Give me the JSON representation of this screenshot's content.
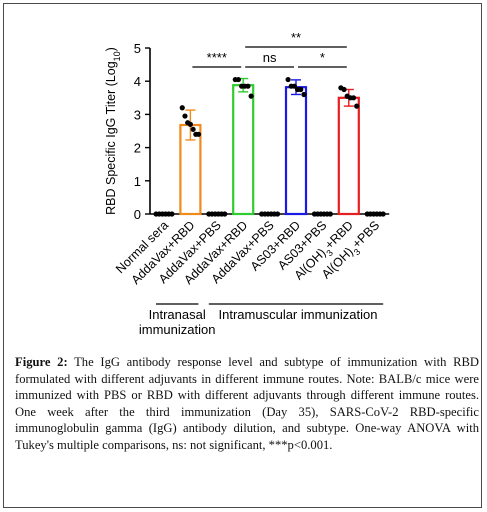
{
  "chart_data": {
    "type": "bar",
    "ylabel": "RBD Specific IgG Titer (Log10)",
    "ylim": [
      0,
      5
    ],
    "yticks": [
      0,
      1,
      2,
      3,
      4,
      5
    ],
    "categories": [
      "Normal sera",
      "AddaVax+RBD",
      "AddaVax+PBS",
      "AddaVax+RBD",
      "AddaVax+PBS",
      "AS03+RBD",
      "AS03+PBS",
      "Al(OH)3+RBD",
      "Al(OH)3+PBS"
    ],
    "category_parts": [
      [
        {
          "t": "Normal sera"
        }
      ],
      [
        {
          "t": "AddaVax+RBD"
        }
      ],
      [
        {
          "t": "AddaVax+PBS"
        }
      ],
      [
        {
          "t": "AddaVax+RBD"
        }
      ],
      [
        {
          "t": "AddaVax+PBS"
        }
      ],
      [
        {
          "t": "AS03+RBD"
        }
      ],
      [
        {
          "t": "AS03+PBS"
        }
      ],
      [
        {
          "t": "Al(OH)"
        },
        {
          "t": "3",
          "sub": true
        },
        {
          "t": "+RBD"
        }
      ],
      [
        {
          "t": "Al(OH)"
        },
        {
          "t": "3",
          "sub": true
        },
        {
          "t": "+PBS"
        }
      ]
    ],
    "values": [
      0,
      2.68,
      0,
      3.88,
      0,
      3.82,
      0,
      3.5,
      0
    ],
    "errors": [
      0,
      0.45,
      0,
      0.2,
      0,
      0.22,
      0,
      0.25,
      0
    ],
    "colors": [
      "#000000",
      "#f08a1c",
      "#000000",
      "#2ecc2e",
      "#000000",
      "#1a1ae6",
      "#000000",
      "#e81e1e",
      "#000000"
    ],
    "points": [
      [
        0,
        0,
        0,
        0,
        0,
        0
      ],
      [
        3.2,
        2.95,
        2.75,
        2.7,
        2.55,
        2.4,
        2.4
      ],
      [
        0,
        0,
        0,
        0,
        0,
        0
      ],
      [
        4.05,
        4.05,
        3.85,
        3.85,
        3.85,
        3.55
      ],
      [
        0,
        0,
        0,
        0,
        0,
        0
      ],
      [
        4.05,
        3.85,
        3.85,
        3.75,
        3.75,
        3.6
      ],
      [
        0,
        0,
        0,
        0,
        0,
        0
      ],
      [
        3.8,
        3.75,
        3.55,
        3.5,
        3.5,
        3.25
      ],
      [
        0,
        0,
        0,
        0,
        0,
        0
      ]
    ],
    "significance": [
      {
        "from": 1,
        "to": 3,
        "label": "****"
      },
      {
        "from": 3,
        "to": 5,
        "label": "ns"
      },
      {
        "from": 5,
        "to": 7,
        "label": "*"
      },
      {
        "from": 3,
        "to": 7,
        "label": "**"
      }
    ],
    "groups": [
      {
        "from": 0,
        "to": 1,
        "label_lines": [
          "Intranasal",
          "immunization"
        ]
      },
      {
        "from": 2,
        "to": 8,
        "label_lines": [
          "Intramuscular immunization"
        ]
      }
    ]
  },
  "caption": {
    "figure_label": "Figure 2:",
    "text": " The IgG antibody response level and subtype of immunization with RBD formulated with different adjuvants in different immune routes. Note: BALB/c mice were immunized with PBS or RBD with different adjuvants through different immune routes. One week after the third immunization (Day 35), SARS-CoV-2 RBD-specific immunoglobulin gamma (IgG) antibody dilution, and subtype. One-way ANOVA with Tukey's multiple comparisons, ns: not significant, ***p<0.001."
  }
}
